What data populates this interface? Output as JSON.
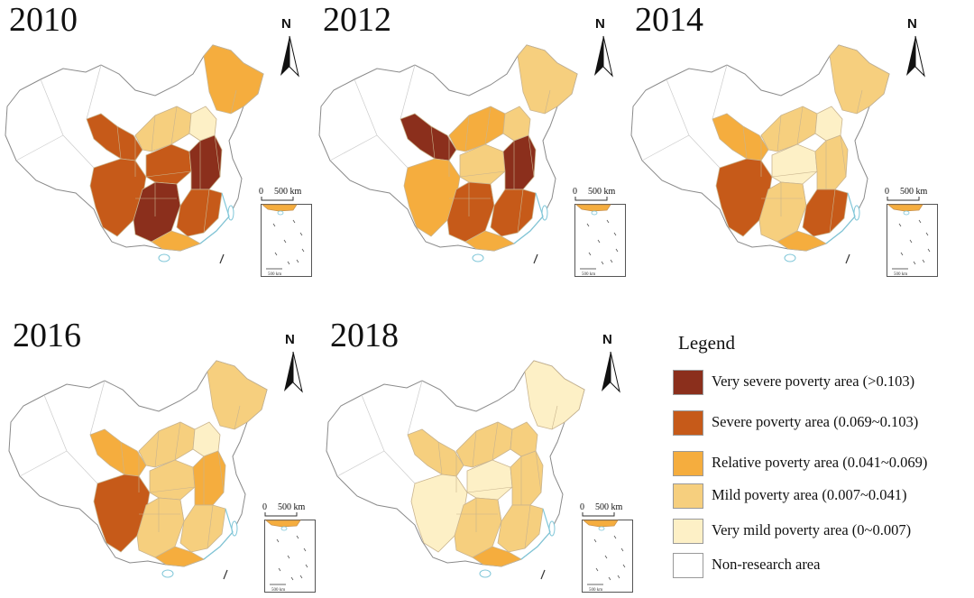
{
  "colors": {
    "very_severe": "#8b2f1c",
    "severe": "#c65a19",
    "relative": "#f5ad3e",
    "mild": "#f6cf7e",
    "very_mild": "#fdf0c6",
    "non_research": "#ffffff",
    "outline": "#8a8a8a",
    "inner_border": "#c9b48e",
    "coast": "#7fc6d8"
  },
  "panels": [
    {
      "id": "2010",
      "year": "2010",
      "scale_label": "500 km",
      "scale_zero": "0",
      "north": "N"
    },
    {
      "id": "2012",
      "year": "2012",
      "scale_label": "500 km",
      "scale_zero": "0",
      "north": "N"
    },
    {
      "id": "2014",
      "year": "2014",
      "scale_label": "500 km",
      "scale_zero": "0",
      "north": "N"
    },
    {
      "id": "2016",
      "year": "2016",
      "scale_label": "500 km",
      "scale_zero": "0",
      "north": "N"
    },
    {
      "id": "2018",
      "year": "2018",
      "scale_label": "500 km",
      "scale_zero": "0",
      "north": "N"
    }
  ],
  "inset_scale_label": "500 km",
  "legend": {
    "title": "Legend",
    "items": [
      {
        "key": "very_severe",
        "label": "Very severe poverty area (>0.103)",
        "color": "#8b2f1c"
      },
      {
        "key": "severe",
        "label": "Severe poverty area (0.069~0.103)",
        "color": "#c65a19"
      },
      {
        "key": "relative",
        "label": "Relative poverty area (0.041~0.069)",
        "color": "#f5ad3e"
      },
      {
        "key": "mild",
        "label": "Mild poverty area (0.007~0.041)",
        "color": "#f6cf7e"
      },
      {
        "key": "very_mild",
        "label": "Very mild poverty area (0~0.007)",
        "color": "#fdf0c6"
      },
      {
        "key": "non_research",
        "label": "Non-research area",
        "color": "#ffffff"
      }
    ]
  },
  "region_classes": {
    "2010": {
      "northeast": "relative",
      "north_coast": "very_mild",
      "north": "mild",
      "northwest": "severe",
      "southwest": "severe",
      "central": "severe",
      "south_central": "very_severe",
      "east": "very_severe",
      "southeast": "severe",
      "south": "relative"
    },
    "2012": {
      "northeast": "mild",
      "north_coast": "mild",
      "north": "relative",
      "northwest": "very_severe",
      "southwest": "relative",
      "central": "mild",
      "south_central": "severe",
      "east": "very_severe",
      "southeast": "severe",
      "south": "relative"
    },
    "2014": {
      "northeast": "mild",
      "north_coast": "very_mild",
      "north": "mild",
      "northwest": "relative",
      "southwest": "severe",
      "central": "very_mild",
      "south_central": "mild",
      "east": "mild",
      "southeast": "severe",
      "south": "relative"
    },
    "2016": {
      "northeast": "mild",
      "north_coast": "very_mild",
      "north": "mild",
      "northwest": "relative",
      "southwest": "severe",
      "central": "mild",
      "south_central": "mild",
      "east": "relative",
      "southeast": "mild",
      "south": "relative"
    },
    "2018": {
      "northeast": "very_mild",
      "north_coast": "mild",
      "north": "mild",
      "northwest": "mild",
      "southwest": "very_mild",
      "central": "very_mild",
      "south_central": "mild",
      "east": "mild",
      "southeast": "mild",
      "south": "relative"
    }
  }
}
